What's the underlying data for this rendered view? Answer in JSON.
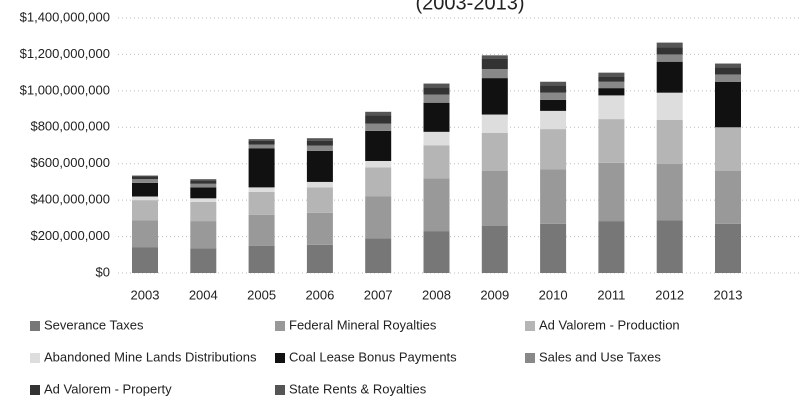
{
  "chart_data": {
    "type": "stacked_bar",
    "title": "(2003-2013)",
    "categories": [
      "2003",
      "2004",
      "2005",
      "2006",
      "2007",
      "2008",
      "2009",
      "2010",
      "2011",
      "2012",
      "2013"
    ],
    "series": [
      {
        "name": "Severance Taxes",
        "color": "#777777",
        "values": [
          140000000,
          135000000,
          150000000,
          155000000,
          190000000,
          230000000,
          260000000,
          270000000,
          285000000,
          290000000,
          270000000
        ]
      },
      {
        "name": "Federal Mineral Royalties",
        "color": "#999999",
        "values": [
          150000000,
          150000000,
          170000000,
          175000000,
          230000000,
          290000000,
          300000000,
          300000000,
          320000000,
          310000000,
          290000000
        ]
      },
      {
        "name": "Ad Valorem - Production",
        "color": "#b5b5b5",
        "values": [
          110000000,
          105000000,
          125000000,
          140000000,
          160000000,
          180000000,
          210000000,
          220000000,
          240000000,
          240000000,
          240000000
        ]
      },
      {
        "name": "Abandoned Mine Lands Distributions",
        "color": "#dddddd",
        "values": [
          20000000,
          20000000,
          25000000,
          30000000,
          35000000,
          75000000,
          100000000,
          100000000,
          130000000,
          150000000,
          0
        ]
      },
      {
        "name": "Coal Lease Bonus Payments",
        "color": "#111111",
        "values": [
          75000000,
          60000000,
          215000000,
          170000000,
          165000000,
          160000000,
          200000000,
          60000000,
          40000000,
          170000000,
          250000000
        ]
      },
      {
        "name": "Sales and Use Taxes",
        "color": "#888888",
        "values": [
          20000000,
          20000000,
          20000000,
          30000000,
          40000000,
          45000000,
          50000000,
          40000000,
          35000000,
          40000000,
          40000000
        ]
      },
      {
        "name": "Ad Valorem - Property",
        "color": "#333333",
        "values": [
          15000000,
          15000000,
          20000000,
          25000000,
          45000000,
          40000000,
          55000000,
          40000000,
          30000000,
          40000000,
          40000000
        ]
      },
      {
        "name": "State Rents & Royalties",
        "color": "#555555",
        "values": [
          5000000,
          10000000,
          10000000,
          15000000,
          20000000,
          20000000,
          20000000,
          20000000,
          20000000,
          25000000,
          20000000
        ]
      }
    ],
    "ylim": [
      0,
      1400000000
    ],
    "yticks": [
      {
        "value": 0,
        "label": "$0"
      },
      {
        "value": 200000000,
        "label": "$200,000,000"
      },
      {
        "value": 400000000,
        "label": "$400,000,000"
      },
      {
        "value": 600000000,
        "label": "$600,000,000"
      },
      {
        "value": 800000000,
        "label": "$800,000,000"
      },
      {
        "value": 1000000000,
        "label": "$1,000,000,000"
      },
      {
        "value": 1200000000,
        "label": "$1,200,000,000"
      },
      {
        "value": 1400000000,
        "label": "$1,400,000,000"
      }
    ],
    "grid": true
  }
}
